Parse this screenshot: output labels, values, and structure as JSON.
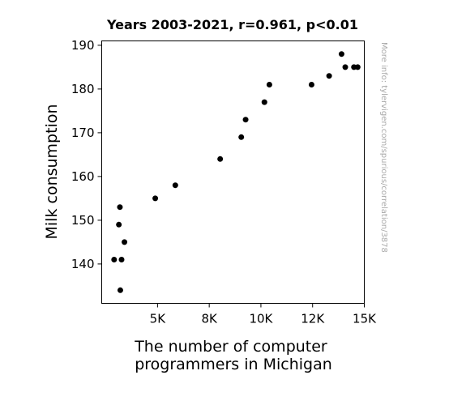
{
  "chart_data": {
    "type": "scatter",
    "title": "Years 2003-2021, r=0.961, p<0.01",
    "xlabel_lines": [
      "The number of computer",
      "programmers in Michigan"
    ],
    "ylabel": "Milk consumption",
    "side_note": "More info: tylervigen.com/spurious/correlation/3878",
    "xlim": [
      2300,
      15000
    ],
    "ylim": [
      131,
      191
    ],
    "x_ticks": [
      {
        "value": 5000,
        "label": "5K"
      },
      {
        "value": 7500,
        "label": "8K"
      },
      {
        "value": 10000,
        "label": "10K"
      },
      {
        "value": 12500,
        "label": "12K"
      },
      {
        "value": 15000,
        "label": "15K"
      }
    ],
    "y_ticks": [
      {
        "value": 140,
        "label": "140"
      },
      {
        "value": 150,
        "label": "150"
      },
      {
        "value": 160,
        "label": "160"
      },
      {
        "value": 170,
        "label": "170"
      },
      {
        "value": 180,
        "label": "180"
      },
      {
        "value": 190,
        "label": "190"
      }
    ],
    "marker_color": "#000000",
    "series": [
      {
        "points": [
          {
            "x": 2900,
            "y": 141
          },
          {
            "x": 3130,
            "y": 149
          },
          {
            "x": 3180,
            "y": 153
          },
          {
            "x": 3200,
            "y": 134
          },
          {
            "x": 3260,
            "y": 141
          },
          {
            "x": 3400,
            "y": 145
          },
          {
            "x": 4890,
            "y": 155
          },
          {
            "x": 5860,
            "y": 158
          },
          {
            "x": 8030,
            "y": 164
          },
          {
            "x": 9050,
            "y": 169
          },
          {
            "x": 9260,
            "y": 173
          },
          {
            "x": 10170,
            "y": 177
          },
          {
            "x": 10410,
            "y": 181
          },
          {
            "x": 12450,
            "y": 181
          },
          {
            "x": 13300,
            "y": 183
          },
          {
            "x": 13900,
            "y": 188
          },
          {
            "x": 14080,
            "y": 185
          },
          {
            "x": 14500,
            "y": 185
          },
          {
            "x": 14680,
            "y": 185
          }
        ]
      }
    ]
  }
}
